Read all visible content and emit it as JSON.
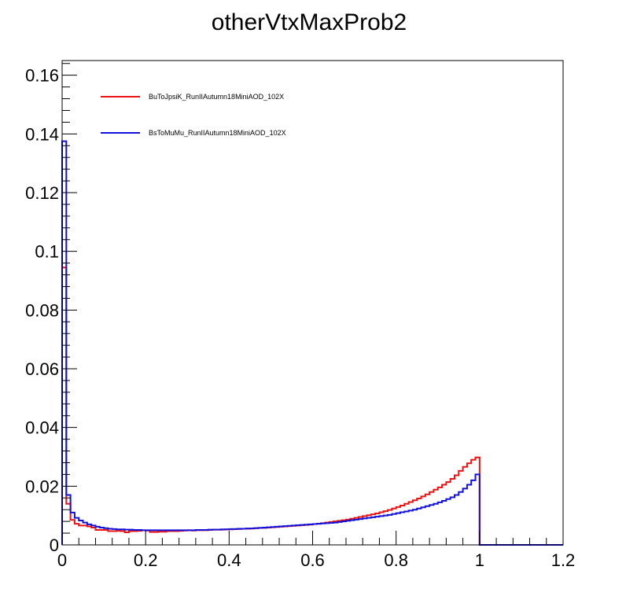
{
  "chart_data": {
    "type": "line",
    "title": "otherVtxMaxProb2",
    "xlabel": "",
    "ylabel": "",
    "xlim": [
      0,
      1.2
    ],
    "ylim": [
      0,
      0.165
    ],
    "xticks": [
      0,
      0.2,
      0.4,
      0.6,
      0.8,
      1,
      1.2
    ],
    "xtick_labels": [
      "0",
      "0.2",
      "0.4",
      "0.6",
      "0.8",
      "1",
      "1.2"
    ],
    "yticks": [
      0,
      0.02,
      0.04,
      0.06,
      0.08,
      0.1,
      0.12,
      0.14,
      0.16
    ],
    "ytick_labels": [
      "0",
      "0.02",
      "0.04",
      "0.06",
      "0.08",
      "0.1",
      "0.12",
      "0.14",
      "0.16"
    ],
    "grid": false,
    "legend_position": "top-left",
    "bin_width": 0.01,
    "x_range": [
      0,
      1.2
    ],
    "series": [
      {
        "name": "BuToJpsiK_RunIIAutumn18MiniAOD_102X",
        "color": "#ee1111",
        "values": [
          0.0945,
          0.014,
          0.0085,
          0.0072,
          0.0066,
          0.0066,
          0.0063,
          0.0059,
          0.0051,
          0.0051,
          0.0051,
          0.0047,
          0.0047,
          0.0048,
          0.0047,
          0.0043,
          0.0047,
          0.0047,
          0.0048,
          0.005,
          0.0049,
          0.0044,
          0.0044,
          0.0045,
          0.0045,
          0.0047,
          0.0047,
          0.0047,
          0.0048,
          0.0049,
          0.005,
          0.0049,
          0.005,
          0.005,
          0.005,
          0.0051,
          0.0052,
          0.0052,
          0.0052,
          0.0053,
          0.0053,
          0.0054,
          0.0054,
          0.0055,
          0.0055,
          0.0056,
          0.0057,
          0.0058,
          0.0058,
          0.0059,
          0.006,
          0.0061,
          0.0062,
          0.0063,
          0.0064,
          0.0065,
          0.0066,
          0.0067,
          0.0068,
          0.0069,
          0.0071,
          0.0072,
          0.0074,
          0.0076,
          0.0078,
          0.008,
          0.0082,
          0.0084,
          0.0086,
          0.0089,
          0.0092,
          0.0095,
          0.0098,
          0.0101,
          0.0104,
          0.0107,
          0.0111,
          0.0115,
          0.0119,
          0.0124,
          0.0129,
          0.0134,
          0.014,
          0.0146,
          0.0152,
          0.0158,
          0.0165,
          0.0172,
          0.018,
          0.0188,
          0.0196,
          0.0205,
          0.0214,
          0.0225,
          0.0237,
          0.0252,
          0.0266,
          0.0278,
          0.029,
          0.0298,
          0,
          0,
          0,
          0,
          0,
          0,
          0,
          0,
          0,
          0,
          0,
          0,
          0,
          0,
          0,
          0,
          0,
          0,
          0,
          0
        ]
      },
      {
        "name": "BsToMuMu_RunIIAutumn18MiniAOD_102X",
        "color": "#1111dd",
        "values": [
          0.1375,
          0.017,
          0.011,
          0.0092,
          0.0083,
          0.0076,
          0.007,
          0.0066,
          0.0062,
          0.0059,
          0.0057,
          0.0055,
          0.0054,
          0.0053,
          0.0053,
          0.0052,
          0.0052,
          0.0051,
          0.0051,
          0.005,
          0.005,
          0.005,
          0.005,
          0.005,
          0.005,
          0.005,
          0.005,
          0.005,
          0.005,
          0.005,
          0.005,
          0.005,
          0.0051,
          0.0051,
          0.0051,
          0.0052,
          0.0052,
          0.0052,
          0.0053,
          0.0053,
          0.0054,
          0.0054,
          0.0055,
          0.0055,
          0.0056,
          0.0056,
          0.0057,
          0.0058,
          0.0059,
          0.006,
          0.0061,
          0.0062,
          0.0063,
          0.0064,
          0.0065,
          0.0066,
          0.0067,
          0.0068,
          0.0069,
          0.007,
          0.0071,
          0.0072,
          0.0073,
          0.0074,
          0.0075,
          0.0076,
          0.0078,
          0.008,
          0.0082,
          0.0084,
          0.0086,
          0.0088,
          0.009,
          0.0092,
          0.0094,
          0.0096,
          0.0098,
          0.01,
          0.0102,
          0.0105,
          0.0108,
          0.0111,
          0.0114,
          0.0117,
          0.012,
          0.0124,
          0.0128,
          0.0132,
          0.0136,
          0.014,
          0.0145,
          0.015,
          0.0156,
          0.0162,
          0.017,
          0.018,
          0.0192,
          0.0205,
          0.022,
          0.024,
          0,
          0,
          0,
          0,
          0,
          0,
          0,
          0,
          0,
          0,
          0,
          0,
          0,
          0,
          0,
          0,
          0,
          0,
          0,
          0
        ]
      }
    ]
  }
}
